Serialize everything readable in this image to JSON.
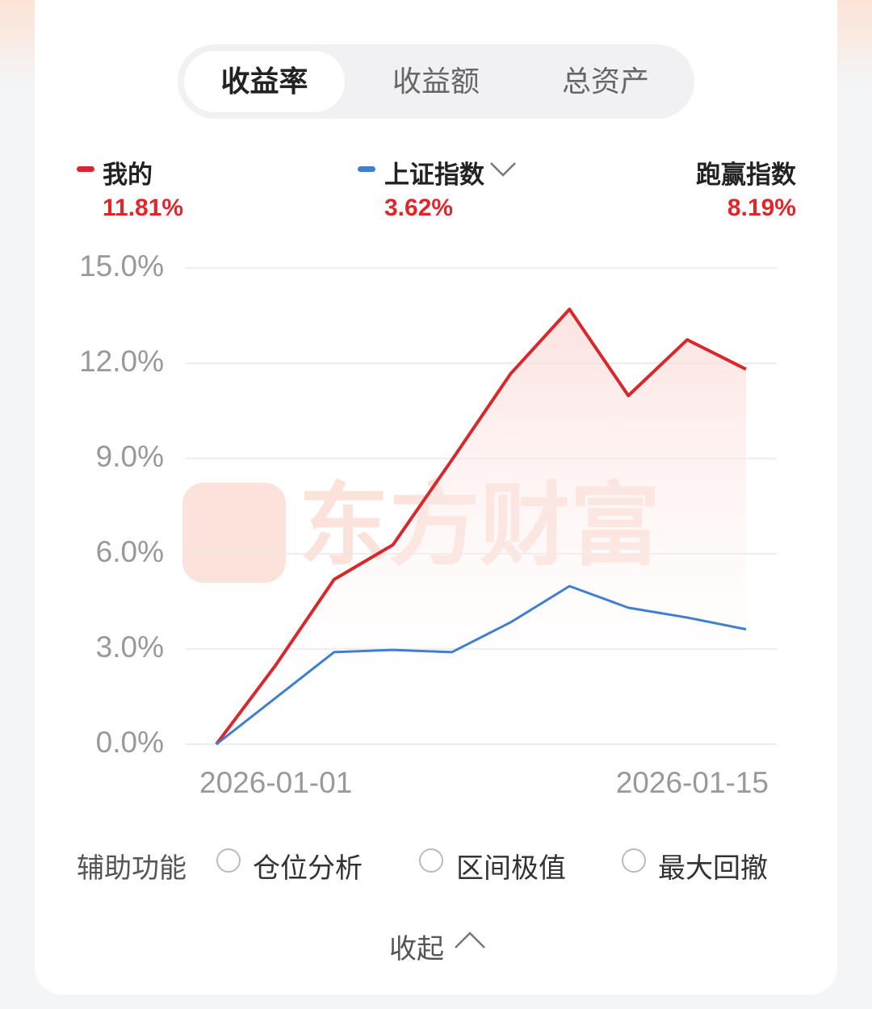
{
  "tabs": [
    "收益率",
    "收益额",
    "总资产"
  ],
  "legend": {
    "mine": {
      "label": "我的",
      "value": "11.81%"
    },
    "index": {
      "label": "上证指数",
      "value": "3.62%"
    },
    "beat": {
      "label": "跑赢指数",
      "value": "8.19%"
    }
  },
  "chart_data": {
    "type": "line",
    "watermark": "东方财富",
    "categories": [
      null,
      null,
      null,
      null,
      null,
      null,
      null,
      null,
      null,
      null
    ],
    "x_labels": [
      "2026-01-01",
      "2026-01-15"
    ],
    "series": [
      {
        "name": "我的",
        "color": "#d9272c",
        "values": [
          0,
          2.47,
          5.19,
          6.28,
          8.95,
          11.67,
          13.7,
          10.98,
          12.74,
          11.81
        ]
      },
      {
        "name": "上证指数",
        "color": "#3f7fd0",
        "values": [
          0,
          1.45,
          2.9,
          2.97,
          2.9,
          3.84,
          4.98,
          4.3,
          3.99,
          3.62
        ]
      }
    ],
    "ylim": [
      0,
      15
    ],
    "yticks": [
      {
        "value": 0,
        "label": "0.0%"
      },
      {
        "value": 3,
        "label": "3.0%"
      },
      {
        "value": 6,
        "label": "6.0%"
      },
      {
        "value": 9,
        "label": "9.0%"
      },
      {
        "value": 12,
        "label": "12.0%"
      },
      {
        "value": 15,
        "label": "15.0%"
      }
    ],
    "grid": true
  },
  "aux": {
    "title": "辅助功能",
    "options": [
      "仓位分析",
      "区间极值",
      "最大回撤"
    ]
  },
  "collapse": "收起"
}
